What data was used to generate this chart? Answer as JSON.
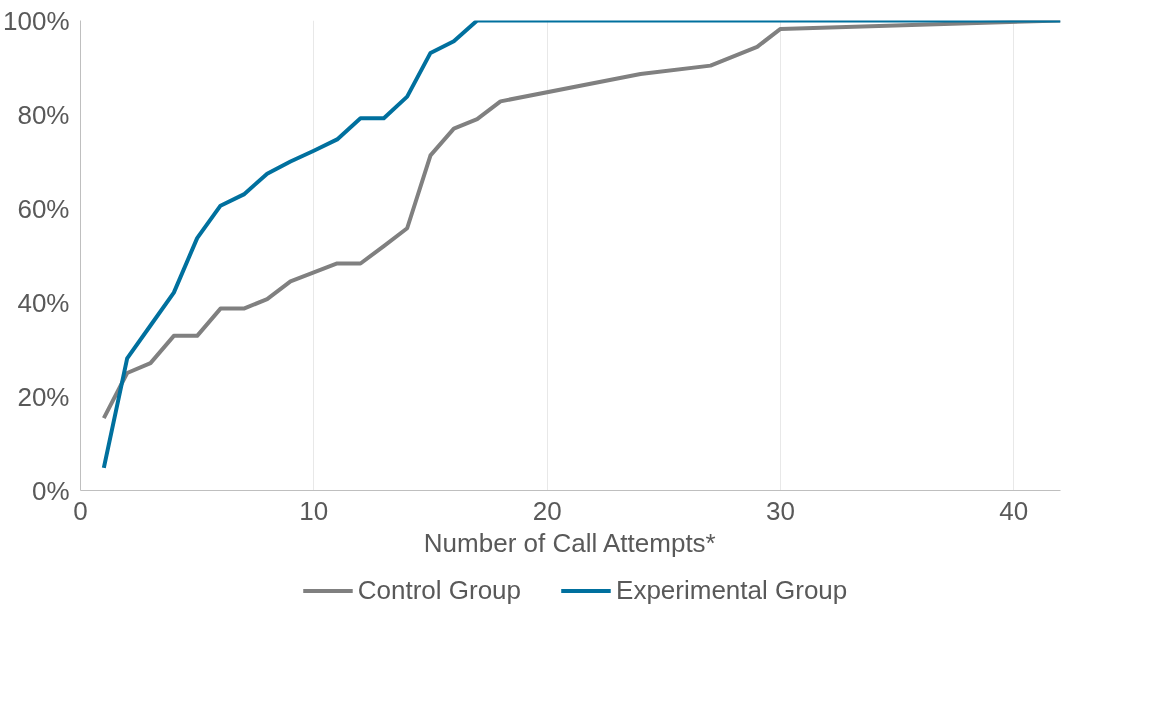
{
  "chart_data": {
    "type": "line",
    "xlabel": "Number of Call Attempts*",
    "xlim": [
      0,
      42
    ],
    "xticks": [
      0,
      10,
      20,
      30,
      40
    ],
    "ylim": [
      0,
      100
    ],
    "yticks": [
      {
        "value": 0,
        "label": "0%"
      },
      {
        "value": 20,
        "label": "20%"
      },
      {
        "value": 40,
        "label": "40%"
      },
      {
        "value": 60,
        "label": "60%"
      },
      {
        "value": 80,
        "label": "80%"
      },
      {
        "value": 100,
        "label": "100%"
      }
    ],
    "grid": "x",
    "legend": "bottom",
    "marker": "none",
    "line_style": "solid",
    "series": [
      {
        "name": "Control Group",
        "color": "#808080",
        "x": [
          1,
          2,
          3,
          4,
          5,
          6,
          7,
          8,
          9,
          10,
          11,
          12,
          13,
          14,
          15,
          16,
          17,
          18,
          24,
          27,
          29,
          30,
          42
        ],
        "values": [
          15.4,
          25,
          27.1,
          32.9,
          32.9,
          38.7,
          38.7,
          40.7,
          44.5,
          46.4,
          48.3,
          48.3,
          52,
          55.8,
          71.3,
          77,
          79,
          82.8,
          88.6,
          90.4,
          94.4,
          98.2,
          100
        ]
      },
      {
        "name": "Experimental Group",
        "color": "#00709e",
        "x": [
          1,
          2,
          3,
          4,
          5,
          6,
          7,
          8,
          9,
          10,
          11,
          12,
          13,
          14,
          15,
          16,
          17,
          42
        ],
        "values": [
          4.8,
          28.1,
          35.1,
          42.1,
          53.7,
          60.6,
          63,
          67.4,
          70,
          72.3,
          74.7,
          79.2,
          79.2,
          83.8,
          93.1,
          95.6,
          100,
          100
        ]
      }
    ]
  }
}
